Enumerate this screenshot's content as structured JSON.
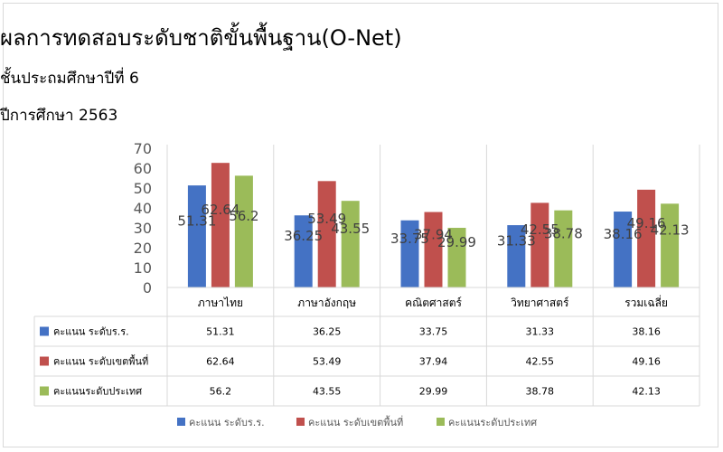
{
  "chart_data": {
    "type": "bar",
    "title": "ผลการทดสอบระดับชาติขั้นพื้นฐาน(O-Net)",
    "subtitle": "ชั้นประถมศึกษาปีที่ 6",
    "subtitle2": "ปีการศึกษา 2563",
    "categories": [
      "ภาษาไทย",
      "ภาษาอังกฤษ",
      "คณิตศาสตร์",
      "วิทยาศาสตร์",
      "รวมเฉลี่ย"
    ],
    "series": [
      {
        "name": "คะแนน ระดับร.ร.",
        "values": [
          51.31,
          36.25,
          33.75,
          31.33,
          38.16
        ],
        "color": "#4472c4"
      },
      {
        "name": "คะแนน ระดับเขตพื้นที่",
        "values": [
          62.64,
          53.49,
          37.94,
          42.55,
          49.16
        ],
        "color": "#c0504d"
      },
      {
        "name": "คะแนนระดับประเทศ",
        "values": [
          56.2,
          43.55,
          29.99,
          38.78,
          42.13
        ],
        "color": "#9bbb59"
      }
    ],
    "ylim": [
      0,
      70
    ],
    "yticks": [
      0,
      10,
      20,
      30,
      40,
      50,
      60,
      70
    ],
    "grid": false,
    "legend": "bottom",
    "data_table": true
  }
}
